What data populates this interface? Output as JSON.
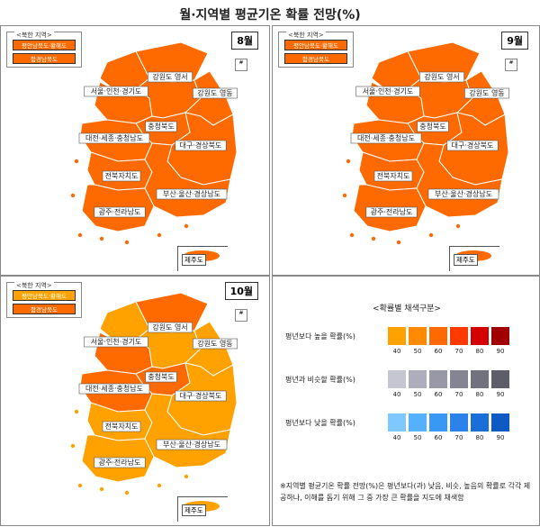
{
  "title": "월·지역별 평균기온 확률 전망(%)",
  "north_korea": {
    "label": "<북한 지역>",
    "regions": [
      "평안남북도·황해도",
      "함경남북도"
    ]
  },
  "island_mark": "#",
  "jeju_label": "제주도",
  "panels": [
    {
      "month": "8월",
      "regions": {
        "gangwon_yeongseo": "강원도 영서",
        "seoul_incheon_gyeonggi": "서울·인천·경기도",
        "gangwon_yeongdong": "강원도 영동",
        "chungbuk": "충청북도",
        "daejeon_sejong_chungnam": "대전·세종·충청남도",
        "daegu_gyeongbuk": "대구·경상북도",
        "jeonbuk": "전북자치도",
        "busan_ulsan_gyeongnam": "부산·울산·경상남도",
        "gwangju_jeonnam": "광주·전라남도"
      },
      "colors": {
        "nk1": "#ff6a00",
        "nk2": "#ff6a00",
        "seoul": "#ff6a00",
        "gangwon_w": "#ff6a00",
        "gangwon_e": "#ff6a00",
        "chungbuk": "#ff6a00",
        "chungnam": "#ff6a00",
        "gyeongbuk": "#ff6a00",
        "jeonbuk": "#ff6a00",
        "jeonnam": "#ff6a00",
        "gyeongnam": "#ff6a00",
        "jeju": "#ff6a00"
      }
    },
    {
      "month": "9월",
      "regions": {
        "gangwon_yeongseo": "강원도 영서",
        "seoul_incheon_gyeonggi": "서울·인천·경기도",
        "gangwon_yeongdong": "강원도 영동",
        "chungbuk": "충청북도",
        "daejeon_sejong_chungnam": "대전·세종·충청남도",
        "daegu_gyeongbuk": "대구·경상북도",
        "jeonbuk": "전북자치도",
        "busan_ulsan_gyeongnam": "부산·울산·경상남도",
        "gwangju_jeonnam": "광주·전라남도"
      },
      "colors": {
        "nk1": "#ff6a00",
        "nk2": "#ff6a00",
        "seoul": "#ff6a00",
        "gangwon_w": "#ff6a00",
        "gangwon_e": "#ff6a00",
        "chungbuk": "#ff6a00",
        "chungnam": "#ff6a00",
        "gyeongbuk": "#ff6a00",
        "jeonbuk": "#ff6a00",
        "jeonnam": "#ff6a00",
        "gyeongnam": "#ff6a00",
        "jeju": "#ff6a00"
      }
    },
    {
      "month": "10월",
      "regions": {
        "gangwon_yeongseo": "강원도 영서",
        "seoul_incheon_gyeonggi": "서울·인천·경기도",
        "gangwon_yeongdong": "강원도 영동",
        "chungbuk": "충청북도",
        "daejeon_sejong_chungnam": "대전·세종·충청남도",
        "daegu_gyeongbuk": "대구·경상북도",
        "jeonbuk": "전북자치도",
        "busan_ulsan_gyeongnam": "부산·울산·경상남도",
        "gwangju_jeonnam": "광주·전라남도"
      },
      "colors": {
        "nk1": "#ffa200",
        "nk2": "#ff6a00",
        "seoul": "#ff6a00",
        "gangwon_w": "#ffa200",
        "gangwon_e": "#ffa200",
        "chungbuk": "#ff6a00",
        "chungnam": "#ff6a00",
        "gyeongbuk": "#ffa200",
        "jeonbuk": "#ffa200",
        "jeonnam": "#ffa200",
        "gyeongnam": "#ffa200",
        "jeju": "#ffa200"
      }
    }
  ],
  "legend": {
    "title": "<확률별 채색구분>",
    "rows": [
      {
        "label": "평년보다 높을 확률(%)",
        "colors": [
          "#ffa200",
          "#ff8a00",
          "#ff6a00",
          "#ff3a00",
          "#d40000",
          "#a00000"
        ]
      },
      {
        "label": "평년과 비슷할 확률(%)",
        "colors": [
          "#c6c6d2",
          "#adadbb",
          "#9898a6",
          "#848492",
          "#72727e",
          "#5e5e6a"
        ]
      },
      {
        "label": "평년보다 낮을 확률(%)",
        "colors": [
          "#7ec8ff",
          "#55b0ff",
          "#3a98f5",
          "#2a82ea",
          "#1a6ed8",
          "#0e5ac4"
        ]
      }
    ],
    "ticks": [
      "40",
      "50",
      "60",
      "70",
      "80",
      "90"
    ]
  },
  "note": "※지역별 평균기온 확률 전망(%)은 평년보다(과) 낮음, 비슷, 높음의 확률로 각각 제공하나, 이해를 돕기 위해 그 중 가장 큰 확률을 지도에 채색함"
}
